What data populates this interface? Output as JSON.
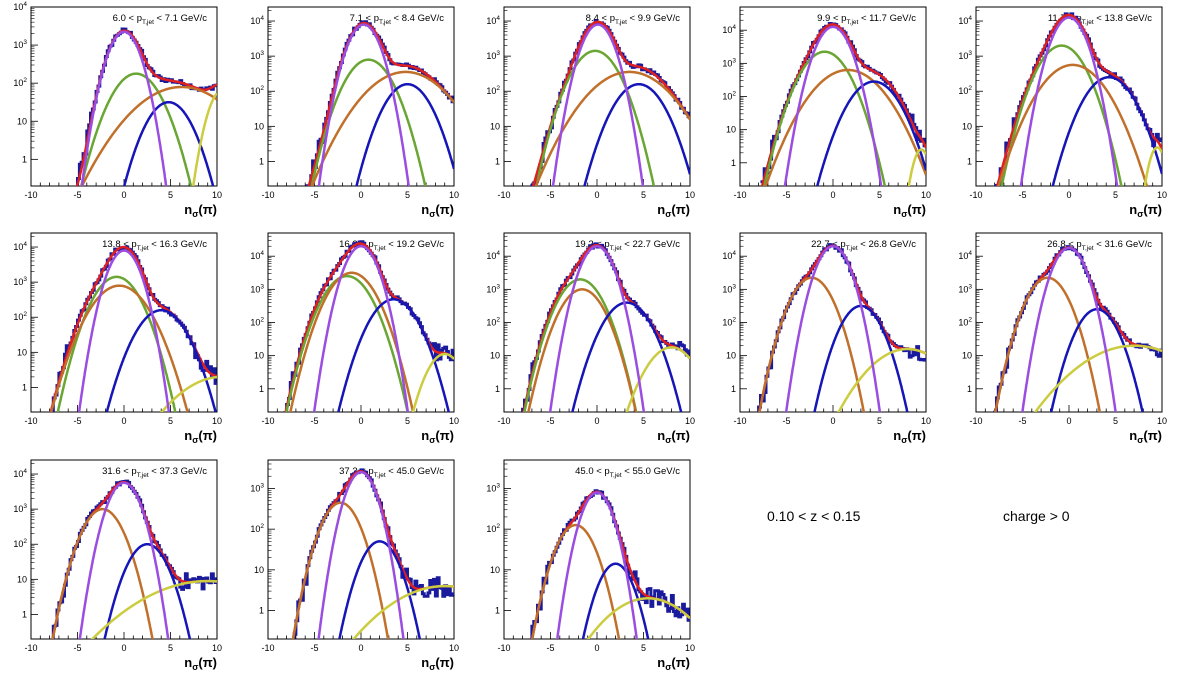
{
  "chart_data": {
    "type": "line",
    "layout_grid": {
      "rows": 3,
      "cols": 5
    },
    "x_axis": {
      "label_base": "n",
      "label_sub": "σ",
      "label_tail": "(π)",
      "range": [
        -10,
        10
      ],
      "ticks": [
        -10,
        -5,
        0,
        5,
        10
      ]
    },
    "y_axis": {
      "scale": "log",
      "tick_labels": {
        "0": "1",
        "1": "10",
        "2": "10",
        "3": "10",
        "4": "10"
      },
      "tick_superscripts": {
        "0": "",
        "1": "",
        "2": "2",
        "3": "3",
        "4": "4"
      }
    },
    "component_colors": {
      "data": "#1a1a9c",
      "total_fit": "#e02020",
      "pion": "#9a4de0",
      "kaon": "#6aa633",
      "proton": "#c0702a",
      "electron": "#1515b8",
      "deuteron": "#cccc40"
    },
    "panels": [
      {
        "label_low": "6.0",
        "label_high": "7.1",
        "ymin_log": -0.7,
        "ymax_log": 4.0,
        "gauss": {
          "pion": [
            3.35,
            0,
            1.05
          ],
          "kaon": [
            2.25,
            1.3,
            1.6
          ],
          "proton": [
            1.9,
            6.2,
            3.1
          ],
          "electron": [
            1.5,
            4.8,
            1.5
          ],
          "deuteron": [
            1.8,
            10.5,
            0.9
          ]
        }
      },
      {
        "label_low": "7.1",
        "label_high": "8.4",
        "ymin_log": -0.7,
        "ymax_log": 4.4,
        "gauss": {
          "pion": [
            3.9,
            0.3,
            1.05
          ],
          "kaon": [
            2.9,
            0.8,
            1.5
          ],
          "proton": [
            2.55,
            4.8,
            2.6
          ],
          "electron": [
            2.2,
            5.0,
            1.5
          ]
        }
      },
      {
        "label_low": "8.4",
        "label_high": "9.9",
        "ymin_log": -0.7,
        "ymax_log": 4.4,
        "gauss": {
          "pion": [
            3.9,
            0.1,
            1.05
          ],
          "kaon": [
            3.15,
            -0.2,
            1.5
          ],
          "proton": [
            2.55,
            3.5,
            2.6
          ],
          "electron": [
            2.2,
            4.5,
            1.6
          ]
        }
      },
      {
        "label_low": "9.9",
        "label_high": "11.7",
        "ymin_log": -0.7,
        "ymax_log": 4.7,
        "gauss": {
          "pion": [
            4.1,
            0.0,
            1.1
          ],
          "kaon": [
            3.35,
            -0.9,
            1.5
          ],
          "proton": [
            2.8,
            1.6,
            2.2
          ],
          "electron": [
            2.45,
            4.4,
            1.6
          ],
          "deuteron": [
            0.4,
            9.5,
            0.6
          ]
        }
      },
      {
        "label_low": "11.7",
        "label_high": "13.8",
        "ymin_log": -0.7,
        "ymax_log": 4.4,
        "gauss": {
          "pion": [
            4.1,
            0.0,
            1.1
          ],
          "kaon": [
            3.3,
            -0.8,
            1.5
          ],
          "proton": [
            2.75,
            0.4,
            2.0
          ],
          "electron": [
            2.4,
            4.3,
            1.6
          ],
          "deuteron": [
            0.4,
            9.5,
            0.6
          ]
        }
      },
      {
        "label_low": "13.8",
        "label_high": "16.3",
        "ymin_log": -0.7,
        "ymax_log": 4.4,
        "gauss": {
          "pion": [
            3.9,
            0.0,
            1.05
          ],
          "kaon": [
            3.15,
            -0.8,
            1.5
          ],
          "proton": [
            2.9,
            -0.5,
            1.8
          ],
          "electron": [
            2.2,
            4.0,
            1.6
          ],
          "deuteron": [
            0.3,
            10.5,
            3.0
          ]
        }
      },
      {
        "label_low": "16.3",
        "label_high": "19.2",
        "ymin_log": -0.7,
        "ymax_log": 4.7,
        "gauss": {
          "pion": [
            4.3,
            0.0,
            1.05
          ],
          "kaon": [
            3.4,
            -1.5,
            1.5
          ],
          "proton": [
            3.5,
            -1.0,
            1.5
          ],
          "electron": [
            2.7,
            3.5,
            1.5
          ],
          "deuteron": [
            1.05,
            9.0,
            1.2
          ]
        }
      },
      {
        "label_low": "19.2",
        "label_high": "22.7",
        "ymin_log": -0.7,
        "ymax_log": 4.7,
        "gauss": {
          "pion": [
            4.3,
            0.0,
            1.05
          ],
          "kaon": [
            3.3,
            -1.8,
            1.4
          ],
          "proton": [
            3.0,
            -1.6,
            1.4
          ],
          "electron": [
            2.6,
            3.2,
            1.5
          ],
          "deuteron": [
            1.25,
            8.0,
            1.6
          ]
        }
      },
      {
        "label_low": "22.7",
        "label_high": "26.8",
        "ymin_log": -0.7,
        "ymax_log": 4.7,
        "gauss": {
          "pion": [
            4.3,
            0.0,
            1.05
          ],
          "proton": [
            3.35,
            -2.3,
            1.3
          ],
          "electron": [
            2.5,
            3.0,
            1.3
          ],
          "deuteron": [
            1.2,
            8.0,
            2.5
          ]
        }
      },
      {
        "label_low": "26.8",
        "label_high": "31.6",
        "ymin_log": -0.7,
        "ymax_log": 4.7,
        "gauss": {
          "pion": [
            4.25,
            0.0,
            1.05
          ],
          "proton": [
            3.35,
            -2.3,
            1.3
          ],
          "electron": [
            2.4,
            3.0,
            1.3
          ],
          "deuteron": [
            1.3,
            7.0,
            3.5
          ]
        }
      },
      {
        "label_low": "31.6",
        "label_high": "37.3",
        "ymin_log": -0.7,
        "ymax_log": 4.4,
        "gauss": {
          "pion": [
            3.75,
            0.0,
            1.05
          ],
          "proton": [
            3.0,
            -2.3,
            1.3
          ],
          "electron": [
            2.0,
            2.5,
            1.3
          ],
          "deuteron": [
            0.95,
            9.0,
            4.5
          ]
        }
      },
      {
        "label_low": "37.3",
        "label_high": "45.0",
        "ymin_log": -0.7,
        "ymax_log": 3.7,
        "gauss": {
          "pion": [
            3.4,
            0.0,
            1.05
          ],
          "proton": [
            2.65,
            -2.2,
            1.3
          ],
          "electron": [
            1.7,
            2.0,
            1.3
          ],
          "deuteron": [
            0.6,
            9.0,
            4.0
          ]
        }
      },
      {
        "label_low": "45.0",
        "label_high": "55.0",
        "ymin_log": -0.7,
        "ymax_log": 3.7,
        "gauss": {
          "pion": [
            2.9,
            0.0,
            1.05
          ],
          "proton": [
            2.1,
            -2.3,
            1.3
          ],
          "electron": [
            1.15,
            2.0,
            1.2
          ],
          "deuteron": [
            0.3,
            5.5,
            3.0
          ]
        }
      }
    ],
    "annotations": {
      "z_range": "0.10 < z < 0.15",
      "charge": "charge > 0"
    }
  }
}
